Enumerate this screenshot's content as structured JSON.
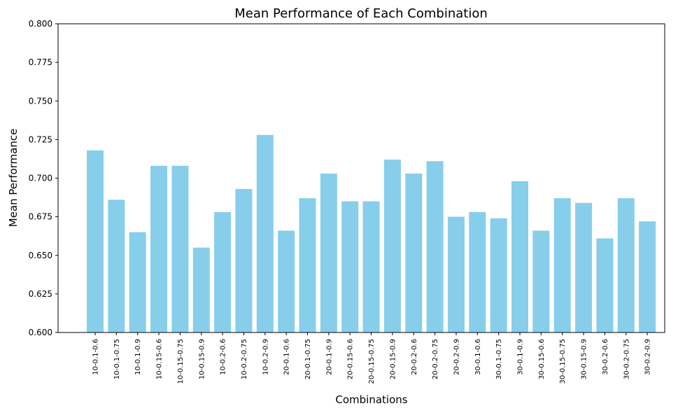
{
  "chart_data": {
    "type": "bar",
    "title": "Mean Performance of Each Combination",
    "xlabel": "Combinations",
    "ylabel": "Mean Performance",
    "ylim": [
      0.6,
      0.8
    ],
    "yticks": [
      "0.600",
      "0.625",
      "0.650",
      "0.675",
      "0.700",
      "0.725",
      "0.750",
      "0.775",
      "0.800"
    ],
    "grid": false,
    "bar_color": "#87ceeb",
    "categories": [
      "10-0.1-0.6",
      "10-0.1-0.75",
      "10-0.1-0.9",
      "10-0.15-0.6",
      "10-0.15-0.75",
      "10-0.15-0.9",
      "10-0.2-0.6",
      "10-0.2-0.75",
      "10-0.2-0.9",
      "20-0.1-0.6",
      "20-0.1-0.75",
      "20-0.1-0.9",
      "20-0.15-0.6",
      "20-0.15-0.75",
      "20-0.15-0.9",
      "20-0.2-0.6",
      "20-0.2-0.75",
      "20-0.2-0.9",
      "30-0.1-0.6",
      "30-0.1-0.75",
      "30-0.1-0.9",
      "30-0.15-0.6",
      "30-0.15-0.75",
      "30-0.15-0.9",
      "30-0.2-0.6",
      "30-0.2-0.75",
      "30-0.2-0.9"
    ],
    "values": [
      0.718,
      0.686,
      0.665,
      0.708,
      0.708,
      0.655,
      0.678,
      0.693,
      0.728,
      0.666,
      0.687,
      0.703,
      0.685,
      0.685,
      0.712,
      0.703,
      0.711,
      0.675,
      0.678,
      0.674,
      0.698,
      0.666,
      0.687,
      0.684,
      0.661,
      0.687,
      0.672
    ]
  }
}
